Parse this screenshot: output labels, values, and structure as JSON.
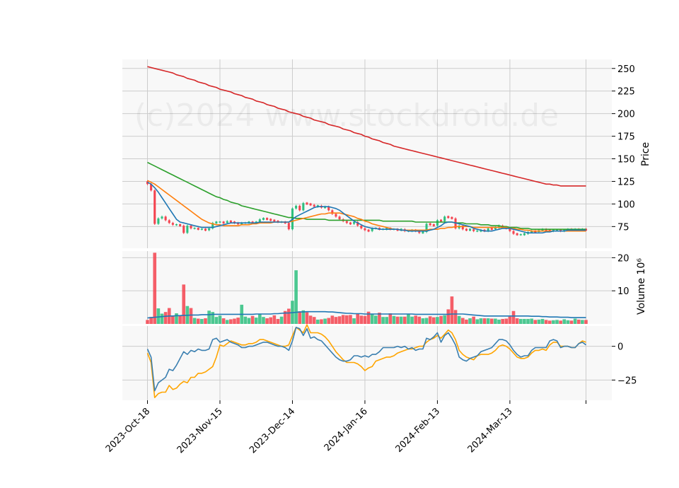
{
  "chart_data": {
    "type": "candlestick",
    "watermark": "(c)2024 www.stockdroid.de",
    "x_tick_labels": [
      "2023-Oct-18",
      "2023-Nov-15",
      "2023-Dec-14",
      "2024-Jan-16",
      "2024-Feb-13",
      "2024-Mar-13"
    ],
    "x_tick_indices": [
      0,
      20,
      40,
      60,
      80,
      100
    ],
    "colors": {
      "up": "#2ebf7f",
      "down": "#f4434f",
      "ma_short": "#1f77b4",
      "ma_mid": "#ff7f0e",
      "ma_long": "#2ca02c",
      "ma_200": "#d62728",
      "vol_avg": "#1f77b4",
      "osc_fast": "#3a7fb0",
      "osc_slow": "#ffa500",
      "grid": "#cccccc",
      "panel_bg": "#f8f8f8"
    },
    "price_panel": {
      "ylabel": "Price",
      "ylim": [
        51,
        260
      ],
      "yticks": [
        75,
        100,
        125,
        150,
        175,
        200,
        225,
        250
      ],
      "close": [
        122,
        115,
        78,
        84,
        86,
        82,
        79,
        77,
        77,
        76,
        68,
        76,
        73,
        73,
        72,
        72,
        71,
        73,
        79,
        80,
        80,
        79,
        81,
        80,
        79,
        78,
        79,
        79,
        80,
        79,
        80,
        83,
        84,
        83,
        82,
        81,
        80,
        80,
        79,
        72,
        95,
        98,
        93,
        101,
        100,
        99,
        97,
        98,
        96,
        97,
        93,
        89,
        86,
        83,
        81,
        79,
        78,
        80,
        76,
        73,
        71,
        70,
        73,
        73,
        72,
        72,
        73,
        72,
        72,
        71,
        72,
        70,
        70,
        71,
        70,
        68,
        69,
        78,
        77,
        76,
        82,
        81,
        86,
        85,
        84,
        73,
        76,
        72,
        71,
        72,
        70,
        70,
        71,
        70,
        73,
        72,
        74,
        76,
        74,
        73,
        70,
        67,
        66,
        66,
        67,
        69,
        70,
        69,
        71,
        72,
        71,
        70,
        71,
        71,
        70,
        71,
        72,
        71,
        72,
        71,
        72,
        71
      ],
      "ma_short": [
        124,
        122,
        118,
        113,
        107,
        101,
        95,
        89,
        83,
        80,
        79,
        78,
        77,
        76,
        75,
        74,
        74,
        74,
        74,
        75,
        76,
        77,
        78,
        79,
        79,
        79,
        79,
        79,
        79,
        79,
        79,
        80,
        80,
        80,
        80,
        80,
        80,
        80,
        80,
        80,
        83,
        86,
        88,
        90,
        92,
        94,
        96,
        97,
        97,
        97,
        97,
        96,
        95,
        93,
        90,
        87,
        84,
        81,
        79,
        77,
        75,
        74,
        73,
        73,
        72,
        72,
        72,
        72,
        72,
        72,
        71,
        71,
        70,
        70,
        70,
        70,
        70,
        70,
        71,
        72,
        74,
        76,
        79,
        80,
        80,
        79,
        78,
        77,
        76,
        75,
        73,
        72,
        71,
        70,
        70,
        70,
        71,
        72,
        73,
        73,
        73,
        72,
        71,
        70,
        69,
        68,
        68,
        68,
        68,
        68,
        69,
        69,
        70,
        70,
        70,
        70,
        71,
        71,
        71,
        71,
        71,
        71
      ],
      "ma_mid": [
        126,
        124,
        122,
        119,
        116,
        113,
        110,
        107,
        104,
        101,
        98,
        95,
        92,
        89,
        86,
        83,
        81,
        79,
        78,
        77,
        77,
        76,
        76,
        76,
        76,
        76,
        77,
        77,
        77,
        78,
        78,
        79,
        79,
        79,
        79,
        80,
        80,
        80,
        80,
        80,
        81,
        82,
        83,
        84,
        85,
        86,
        87,
        88,
        89,
        89,
        90,
        90,
        90,
        90,
        89,
        88,
        87,
        86,
        84,
        83,
        81,
        80,
        78,
        77,
        76,
        75,
        74,
        73,
        72,
        72,
        71,
        71,
        71,
        71,
        71,
        71,
        71,
        71,
        72,
        72,
        72,
        73,
        73,
        74,
        74,
        75,
        75,
        75,
        75,
        75,
        74,
        74,
        74,
        74,
        74,
        74,
        74,
        74,
        74,
        74,
        73,
        73,
        72,
        72,
        71,
        71,
        70,
        70,
        70,
        70,
        70,
        70,
        70,
        70,
        70,
        70,
        70,
        70,
        70,
        70,
        70,
        70
      ],
      "ma_long": [
        146,
        144,
        142,
        140,
        138,
        136,
        134,
        132,
        130,
        128,
        126,
        124,
        122,
        120,
        118,
        116,
        114,
        112,
        110,
        108,
        107,
        105,
        104,
        102,
        101,
        100,
        98,
        97,
        96,
        95,
        94,
        93,
        92,
        91,
        90,
        89,
        88,
        87,
        86,
        85,
        85,
        84,
        84,
        84,
        83,
        83,
        83,
        83,
        83,
        83,
        82,
        82,
        82,
        82,
        82,
        82,
        82,
        82,
        82,
        82,
        82,
        82,
        82,
        82,
        82,
        81,
        81,
        81,
        81,
        81,
        81,
        81,
        81,
        81,
        80,
        80,
        80,
        80,
        80,
        80,
        80,
        80,
        80,
        80,
        80,
        79,
        79,
        79,
        78,
        78,
        78,
        78,
        77,
        77,
        77,
        76,
        76,
        76,
        75,
        75,
        74,
        74,
        74,
        73,
        73,
        73,
        72,
        72,
        72,
        72,
        72,
        72,
        72,
        72,
        72,
        72,
        72,
        72,
        72,
        72,
        72,
        72
      ],
      "ma_200": [
        252,
        251,
        250,
        249,
        248,
        247,
        246,
        245,
        243,
        242,
        241,
        239,
        238,
        237,
        235,
        234,
        233,
        231,
        230,
        229,
        227,
        226,
        225,
        224,
        222,
        221,
        220,
        218,
        217,
        216,
        214,
        213,
        212,
        210,
        209,
        208,
        206,
        205,
        204,
        202,
        201,
        200,
        199,
        197,
        196,
        195,
        193,
        192,
        191,
        190,
        188,
        187,
        186,
        185,
        183,
        182,
        181,
        179,
        178,
        177,
        175,
        174,
        172,
        171,
        170,
        168,
        167,
        166,
        164,
        163,
        162,
        161,
        160,
        159,
        158,
        157,
        156,
        155,
        154,
        153,
        152,
        151,
        150,
        149,
        148,
        147,
        146,
        145,
        144,
        143,
        142,
        141,
        140,
        139,
        138,
        137,
        136,
        135,
        134,
        133,
        132,
        131,
        130,
        129,
        128,
        127,
        126,
        125,
        124,
        123,
        122,
        122,
        121,
        121,
        120,
        120,
        120,
        120,
        120,
        120,
        120,
        120
      ]
    },
    "volume_panel": {
      "ylabel": "Volume  10⁶",
      "ylim": [
        0,
        22
      ],
      "yticks": [
        10,
        20
      ],
      "volume": [
        1.2,
        2.1,
        21.5,
        4.7,
        3.1,
        3.6,
        4.8,
        2.5,
        3.2,
        2.6,
        11.9,
        5.4,
        4.8,
        1.8,
        1.6,
        1.5,
        1.7,
        4.0,
        3.6,
        2.1,
        2.5,
        1.7,
        1.2,
        1.4,
        1.6,
        1.9,
        5.8,
        2.2,
        1.8,
        2.4,
        1.9,
        3.1,
        2.1,
        1.7,
        2.0,
        2.6,
        1.5,
        2.2,
        3.9,
        4.6,
        7.0,
        16.2,
        3.8,
        4.1,
        3.5,
        2.5,
        2.1,
        1.3,
        1.4,
        1.6,
        1.8,
        2.5,
        2.1,
        2.3,
        2.7,
        2.6,
        2.7,
        1.7,
        3.1,
        2.5,
        2.4,
        3.7,
        3.0,
        2.5,
        3.4,
        2.1,
        2.1,
        3.2,
        2.4,
        2.2,
        2.2,
        2.2,
        3.0,
        2.2,
        2.5,
        2.2,
        1.7,
        1.8,
        2.3,
        2.0,
        2.1,
        2.4,
        2.6,
        4.4,
        8.3,
        4.2,
        2.4,
        1.8,
        1.3,
        1.7,
        2.2,
        1.4,
        1.7,
        1.7,
        1.7,
        1.6,
        1.6,
        1.3,
        1.5,
        1.6,
        2.2,
        3.9,
        1.7,
        1.5,
        1.5,
        1.5,
        1.6,
        1.2,
        1.3,
        1.5,
        1.2,
        1.0,
        1.1,
        1.2,
        1.0,
        1.4,
        1.1,
        1.0,
        1.6,
        1.3,
        1.2,
        1.2
      ],
      "volume_avg": [
        1.8,
        1.9,
        2.0,
        2.1,
        2.2,
        2.3,
        2.4,
        2.4,
        2.5,
        2.5,
        2.6,
        2.6,
        2.7,
        2.7,
        2.7,
        2.8,
        2.8,
        2.8,
        2.9,
        2.9,
        2.9,
        2.9,
        2.9,
        2.9,
        2.9,
        2.9,
        2.9,
        2.9,
        2.9,
        2.9,
        3.0,
        3.0,
        3.0,
        3.0,
        3.0,
        3.1,
        3.1,
        3.2,
        3.3,
        3.3,
        3.4,
        3.5,
        3.6,
        3.6,
        3.7,
        3.7,
        3.7,
        3.7,
        3.7,
        3.7,
        3.6,
        3.6,
        3.5,
        3.4,
        3.3,
        3.2,
        3.2,
        3.1,
        3.1,
        3.1,
        3.0,
        3.0,
        3.0,
        3.0,
        3.0,
        3.0,
        3.0,
        3.0,
        3.0,
        3.0,
        3.0,
        3.0,
        3.0,
        3.0,
        2.9,
        2.9,
        2.9,
        2.9,
        2.9,
        2.9,
        2.9,
        2.9,
        2.9,
        2.9,
        3.0,
        3.0,
        3.0,
        3.0,
        2.9,
        2.8,
        2.7,
        2.6,
        2.5,
        2.4,
        2.4,
        2.4,
        2.4,
        2.4,
        2.4,
        2.4,
        2.4,
        2.4,
        2.4,
        2.4,
        2.4,
        2.4,
        2.3,
        2.3,
        2.3,
        2.2,
        2.2,
        2.1,
        2.1,
        2.1,
        2.0,
        2.0,
        2.0,
        1.9,
        1.9,
        1.9,
        1.9,
        1.9
      ]
    },
    "oscillator_panel": {
      "ylim": [
        -40,
        15
      ],
      "yticks": [
        -25,
        0
      ],
      "fast": [
        -2,
        -8,
        -33,
        -27,
        -25,
        -23,
        -17,
        -18,
        -14,
        -9,
        -4,
        -6,
        -3,
        -4,
        -2,
        -3,
        -3,
        -2,
        5,
        6,
        3,
        4,
        5,
        3,
        2,
        1,
        -1,
        -1,
        0,
        0,
        1,
        2,
        3,
        3,
        2,
        1,
        0,
        0,
        -1,
        -3,
        4,
        14,
        13,
        8,
        13,
        6,
        7,
        5,
        4,
        1,
        -2,
        -5,
        -8,
        -10,
        -11,
        -11,
        -10,
        -7,
        -7,
        -8,
        -7,
        -8,
        -6,
        -6,
        -4,
        -1,
        -1,
        -1,
        -1,
        0,
        -1,
        0,
        -2,
        -1,
        -3,
        -2,
        -2,
        6,
        5,
        7,
        10,
        3,
        8,
        10,
        6,
        1,
        -8,
        -10,
        -11,
        -9,
        -8,
        -7,
        -4,
        -3,
        -2,
        -1,
        2,
        5,
        5,
        4,
        1,
        -3,
        -6,
        -8,
        -7,
        -7,
        -3,
        -1,
        -1,
        -1,
        -1,
        4,
        5,
        4,
        -1,
        0,
        0,
        -1,
        -1,
        2,
        3,
        1
      ],
      "slow": [
        -5,
        -12,
        -38,
        -35,
        -34,
        -34,
        -29,
        -32,
        -31,
        -28,
        -26,
        -27,
        -23,
        -23,
        -20,
        -20,
        -19,
        -17,
        -15,
        -8,
        1,
        0,
        2,
        4,
        3,
        2,
        1,
        1,
        2,
        2,
        3,
        5,
        5,
        4,
        3,
        2,
        1,
        0,
        0,
        1,
        8,
        14,
        12,
        10,
        16,
        10,
        10,
        10,
        9,
        7,
        4,
        0,
        -4,
        -7,
        -10,
        -12,
        -12,
        -12,
        -13,
        -15,
        -18,
        -16,
        -15,
        -11,
        -10,
        -9,
        -8,
        -8,
        -7,
        -5,
        -4,
        -3,
        -2,
        -2,
        -1,
        0,
        0,
        3,
        5,
        6,
        8,
        6,
        9,
        12,
        10,
        5,
        -3,
        -6,
        -8,
        -9,
        -10,
        -7,
        -6,
        -6,
        -6,
        -5,
        -3,
        0,
        1,
        0,
        -2,
        -5,
        -8,
        -9,
        -9,
        -8,
        -5,
        -3,
        -3,
        -2,
        -3,
        1,
        3,
        3,
        0,
        0,
        0,
        -1,
        -1,
        2,
        4,
        3
      ]
    }
  }
}
